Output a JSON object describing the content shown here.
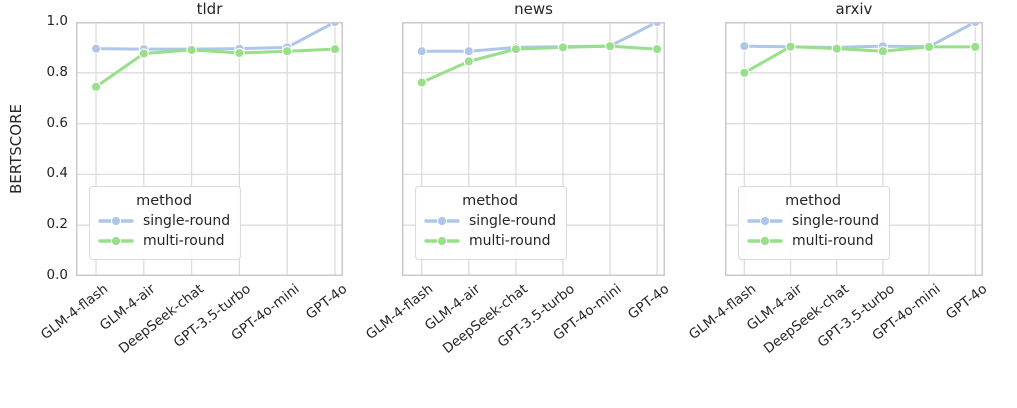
{
  "figure": {
    "ylabel": "BERTSCORE",
    "ytick_labels": [
      "0.0",
      "0.2",
      "0.4",
      "0.6",
      "0.8",
      "1.0"
    ],
    "categories": [
      "GLM-4-flash",
      "GLM-4-air",
      "DeepSeek-chat",
      "GPT-3.5-turbo",
      "GPT-4o-mini",
      "GPT-4o"
    ],
    "legend": {
      "title": "method",
      "entries": [
        {
          "label": "single-round",
          "color": "#aec7e8"
        },
        {
          "label": "multi-round",
          "color": "#98df8a"
        }
      ]
    },
    "colors": {
      "single_round": "#aec7e8",
      "multi_round": "#98df8a",
      "grid": "#dcdcdc",
      "spine": "#cacaca",
      "text": "#262626",
      "background": "#ffffff"
    }
  },
  "chart_data": [
    {
      "type": "line",
      "title": "tldr",
      "xlabel": "",
      "ylabel": "BERTSCORE",
      "ylim": [
        0.0,
        1.0
      ],
      "grid": true,
      "legend_position": "lower left",
      "categories": [
        "GLM-4-flash",
        "GLM-4-air",
        "DeepSeek-chat",
        "GPT-3.5-turbo",
        "GPT-4o-mini",
        "GPT-4o"
      ],
      "series": [
        {
          "name": "single-round",
          "color": "#aec7e8",
          "values": [
            0.895,
            0.893,
            0.893,
            0.895,
            0.9,
            1.0
          ]
        },
        {
          "name": "multi-round",
          "color": "#98df8a",
          "values": [
            0.745,
            0.876,
            0.89,
            0.878,
            0.885,
            0.893
          ]
        }
      ]
    },
    {
      "type": "line",
      "title": "news",
      "xlabel": "",
      "ylabel": "BERTSCORE",
      "ylim": [
        0.0,
        1.0
      ],
      "grid": true,
      "legend_position": "lower left",
      "categories": [
        "GLM-4-flash",
        "GLM-4-air",
        "DeepSeek-chat",
        "GPT-3.5-turbo",
        "GPT-4o-mini",
        "GPT-4o"
      ],
      "series": [
        {
          "name": "single-round",
          "color": "#aec7e8",
          "values": [
            0.885,
            0.885,
            0.9,
            0.903,
            0.905,
            1.0
          ]
        },
        {
          "name": "multi-round",
          "color": "#98df8a",
          "values": [
            0.762,
            0.845,
            0.893,
            0.9,
            0.905,
            0.893
          ]
        }
      ]
    },
    {
      "type": "line",
      "title": "arxiv",
      "xlabel": "",
      "ylabel": "BERTSCORE",
      "ylim": [
        0.0,
        1.0
      ],
      "grid": true,
      "legend_position": "lower left",
      "categories": [
        "GLM-4-flash",
        "GLM-4-air",
        "DeepSeek-chat",
        "GPT-3.5-turbo",
        "GPT-4o-mini",
        "GPT-4o"
      ],
      "series": [
        {
          "name": "single-round",
          "color": "#aec7e8",
          "values": [
            0.905,
            0.902,
            0.9,
            0.905,
            0.903,
            1.0
          ]
        },
        {
          "name": "multi-round",
          "color": "#98df8a",
          "values": [
            0.8,
            0.903,
            0.895,
            0.885,
            0.902,
            0.902
          ]
        }
      ]
    }
  ]
}
